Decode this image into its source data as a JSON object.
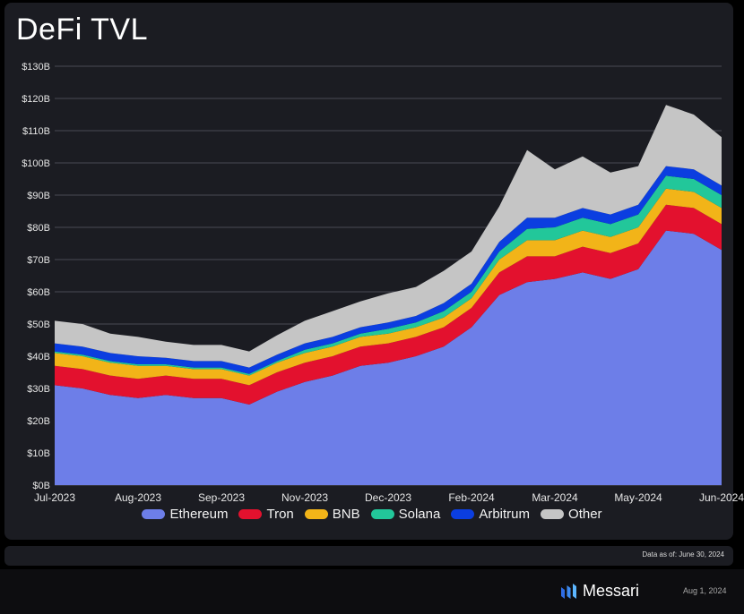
{
  "title": "DeFi TVL",
  "data_as_of": "Data as of: June 30, 2024",
  "brand": {
    "name": "Messari",
    "icon": "messari-logo-icon"
  },
  "footer_date": "Aug 1, 2024",
  "legend_colors": {
    "Ethereum": "#6d7ee8",
    "Tron": "#e3112e",
    "BNB": "#f2b418",
    "Solana": "#22c79a",
    "Arbitrum": "#0b3ee0",
    "Other": "#c5c5c5"
  },
  "chart_data": {
    "type": "area",
    "stacked": true,
    "title": "DeFi TVL",
    "xlabel": "",
    "ylabel": "",
    "ylim": [
      0,
      130
    ],
    "yticks": [
      0,
      10,
      20,
      30,
      40,
      50,
      60,
      70,
      80,
      90,
      100,
      110,
      120,
      130
    ],
    "ytick_labels": [
      "$0B",
      "$10B",
      "$20B",
      "$30B",
      "$40B",
      "$50B",
      "$60B",
      "$70B",
      "$80B",
      "$90B",
      "$100B",
      "$110B",
      "$120B",
      "$130B"
    ],
    "x_tick_labels": [
      "Jul-2023",
      "Aug-2023",
      "Sep-2023",
      "Nov-2023",
      "Dec-2023",
      "Feb-2024",
      "Mar-2024",
      "May-2024",
      "Jun-2024"
    ],
    "x_tick_positions": [
      0,
      1.5,
      3,
      4.5,
      6,
      7.5,
      9,
      10.5,
      12
    ],
    "x": [
      0,
      0.5,
      1,
      1.5,
      2,
      2.5,
      3,
      3.5,
      4,
      4.5,
      5,
      5.5,
      6,
      6.5,
      7,
      7.5,
      8,
      8.5,
      9,
      9.5,
      10,
      10.5,
      11,
      11.5,
      12
    ],
    "x_unit": "months since Jul-2023",
    "legend_position": "bottom",
    "grid": true,
    "series": [
      {
        "name": "Ethereum",
        "values": [
          31,
          30,
          28,
          27,
          28,
          27,
          27,
          25,
          29,
          32,
          34,
          37,
          38,
          40,
          43,
          49,
          59,
          63,
          64,
          66,
          64,
          67,
          79,
          78,
          73
        ]
      },
      {
        "name": "Tron",
        "values": [
          6,
          6,
          6,
          6,
          6,
          6,
          6,
          6,
          6,
          6,
          6,
          6,
          6,
          6,
          6,
          6,
          7,
          8,
          7,
          8,
          8,
          8,
          8,
          8,
          8
        ]
      },
      {
        "name": "BNB",
        "values": [
          4,
          4,
          4,
          4,
          3,
          3,
          3,
          3,
          3,
          3,
          3,
          3,
          3,
          3,
          3,
          3,
          4,
          5,
          5,
          5,
          5,
          5,
          5,
          5,
          5
        ]
      },
      {
        "name": "Solana",
        "values": [
          0.5,
          0.5,
          0.5,
          0.5,
          0.5,
          0.5,
          0.5,
          0.5,
          0.5,
          1,
          1,
          1,
          1.5,
          1.5,
          2,
          2,
          2.5,
          3.5,
          4,
          4,
          4,
          4,
          4,
          4,
          4
        ]
      },
      {
        "name": "Arbitrum",
        "values": [
          2.5,
          2.5,
          2.5,
          2.5,
          2,
          2,
          2,
          2,
          2,
          2,
          2,
          2,
          2,
          2,
          2.5,
          2.5,
          3,
          3.5,
          3,
          3,
          3,
          3,
          3,
          3,
          3
        ]
      },
      {
        "name": "Other",
        "values": [
          7,
          7,
          6,
          6,
          5,
          5,
          5,
          5,
          6,
          7,
          8,
          8,
          9,
          9,
          10,
          10,
          11,
          21,
          15,
          16,
          13,
          12,
          19,
          17,
          15
        ]
      }
    ]
  }
}
